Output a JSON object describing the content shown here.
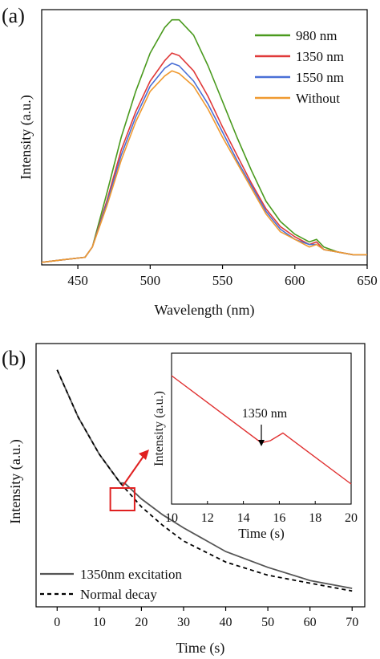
{
  "panels": {
    "a": {
      "label": "(a)"
    },
    "b": {
      "label": "(b)"
    }
  },
  "chart_data": [
    {
      "type": "line",
      "panel": "a",
      "xlabel": "Wavelength (nm)",
      "ylabel": "Intensity (a.u.)",
      "xlim": [
        425,
        650
      ],
      "ylim": [
        0,
        1.0
      ],
      "xticks": [
        450,
        500,
        550,
        600,
        650
      ],
      "yticks_shown": false,
      "legend_position": "top-right",
      "x": [
        425,
        440,
        455,
        460,
        470,
        480,
        490,
        500,
        510,
        515,
        520,
        530,
        540,
        550,
        560,
        570,
        580,
        590,
        600,
        610,
        615,
        620,
        630,
        640,
        650
      ],
      "series": [
        {
          "name": "980 nm",
          "color": "#4a9a1e",
          "values": [
            0.01,
            0.02,
            0.03,
            0.07,
            0.28,
            0.5,
            0.68,
            0.83,
            0.93,
            0.96,
            0.96,
            0.9,
            0.78,
            0.64,
            0.5,
            0.37,
            0.25,
            0.17,
            0.12,
            0.09,
            0.1,
            0.07,
            0.05,
            0.04,
            0.04
          ]
        },
        {
          "name": "1350 nm",
          "color": "#e03a3a",
          "values": [
            0.01,
            0.02,
            0.03,
            0.07,
            0.25,
            0.45,
            0.6,
            0.72,
            0.8,
            0.83,
            0.82,
            0.76,
            0.66,
            0.54,
            0.43,
            0.32,
            0.22,
            0.15,
            0.11,
            0.08,
            0.09,
            0.06,
            0.05,
            0.04,
            0.04
          ]
        },
        {
          "name": "1550 nm",
          "color": "#4a6fd6",
          "values": [
            0.01,
            0.02,
            0.03,
            0.07,
            0.24,
            0.43,
            0.58,
            0.7,
            0.77,
            0.79,
            0.78,
            0.72,
            0.63,
            0.52,
            0.41,
            0.31,
            0.21,
            0.14,
            0.1,
            0.08,
            0.08,
            0.06,
            0.05,
            0.04,
            0.04
          ]
        },
        {
          "name": "Without",
          "color": "#f09a30",
          "values": [
            0.01,
            0.02,
            0.03,
            0.07,
            0.23,
            0.41,
            0.56,
            0.68,
            0.74,
            0.76,
            0.75,
            0.7,
            0.61,
            0.5,
            0.4,
            0.3,
            0.2,
            0.13,
            0.1,
            0.07,
            0.08,
            0.06,
            0.05,
            0.04,
            0.04
          ]
        }
      ]
    },
    {
      "type": "line",
      "panel": "b",
      "xlabel": "Time (s)",
      "ylabel": "Intensity (a.u.)",
      "xlim": [
        -5,
        73
      ],
      "ylim": [
        0,
        1.0
      ],
      "xticks": [
        0,
        10,
        20,
        30,
        40,
        50,
        60,
        70
      ],
      "yticks_shown": false,
      "legend_position": "bottom-left",
      "series": [
        {
          "name": "1350nm excitation",
          "color": "#555555",
          "style": "solid",
          "x": [
            0,
            5,
            10,
            15,
            16,
            20,
            25,
            30,
            40,
            50,
            60,
            70
          ],
          "values": [
            0.9,
            0.72,
            0.58,
            0.47,
            0.47,
            0.41,
            0.35,
            0.3,
            0.21,
            0.15,
            0.1,
            0.07
          ]
        },
        {
          "name": "Normal decay",
          "color": "#000000",
          "style": "dashed",
          "x": [
            0,
            5,
            10,
            15,
            20,
            25,
            30,
            40,
            50,
            60,
            70
          ],
          "values": [
            0.9,
            0.72,
            0.58,
            0.47,
            0.38,
            0.31,
            0.25,
            0.17,
            0.12,
            0.09,
            0.06
          ]
        }
      ],
      "highlight": {
        "x_range": [
          13,
          18
        ],
        "color": "#e02020"
      },
      "inset": {
        "type": "line",
        "xlabel": "Time (s)",
        "ylabel": "Intensity (a.u.)",
        "xlim": [
          10,
          20
        ],
        "xticks": [
          10,
          12,
          14,
          16,
          18,
          20
        ],
        "annotation": "1350 nm",
        "annotation_x": 15,
        "series": [
          {
            "name": "",
            "color": "#e03030",
            "x": [
              10,
              15,
              15.5,
              16.2,
              20
            ],
            "values": [
              1.0,
              0.38,
              0.4,
              0.47,
              0.0
            ]
          }
        ]
      }
    }
  ]
}
